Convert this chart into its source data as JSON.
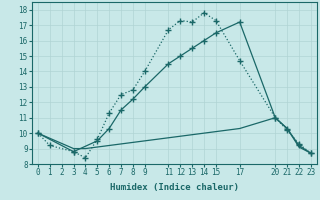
{
  "xlabel": "Humidex (Indice chaleur)",
  "bg_color": "#c8e8e8",
  "grid_color": "#b0d4d4",
  "line_color": "#1a6868",
  "xlim": [
    -0.5,
    23.5
  ],
  "ylim": [
    8.0,
    18.5
  ],
  "yticks": [
    8,
    9,
    10,
    11,
    12,
    13,
    14,
    15,
    16,
    17,
    18
  ],
  "xticks": [
    0,
    1,
    2,
    3,
    4,
    5,
    6,
    7,
    8,
    9,
    11,
    12,
    13,
    14,
    15,
    17,
    20,
    21,
    22,
    23
  ],
  "line1_x": [
    0,
    1,
    3,
    4,
    5,
    6,
    7,
    8,
    9,
    11,
    12,
    13,
    14,
    15,
    17,
    20,
    21,
    22,
    23
  ],
  "line1_y": [
    10.0,
    9.2,
    8.8,
    8.4,
    9.6,
    11.3,
    12.5,
    12.8,
    14.0,
    16.7,
    17.3,
    17.2,
    17.8,
    17.3,
    14.7,
    11.0,
    10.2,
    9.3,
    8.7
  ],
  "line2_x": [
    0,
    3,
    5,
    6,
    7,
    8,
    9,
    11,
    12,
    13,
    14,
    15,
    17,
    20,
    21,
    22,
    23
  ],
  "line2_y": [
    10.0,
    8.8,
    9.5,
    10.3,
    11.5,
    12.2,
    13.0,
    14.5,
    15.0,
    15.5,
    16.0,
    16.5,
    17.2,
    11.0,
    10.3,
    9.2,
    8.7
  ],
  "line3_x": [
    0,
    3,
    4,
    5,
    6,
    7,
    8,
    9,
    11,
    12,
    13,
    14,
    15,
    17,
    20,
    21,
    22,
    23
  ],
  "line3_y": [
    10.0,
    9.0,
    9.0,
    9.1,
    9.2,
    9.3,
    9.4,
    9.5,
    9.7,
    9.8,
    9.9,
    10.0,
    10.1,
    10.3,
    11.0,
    10.3,
    9.1,
    8.7
  ]
}
